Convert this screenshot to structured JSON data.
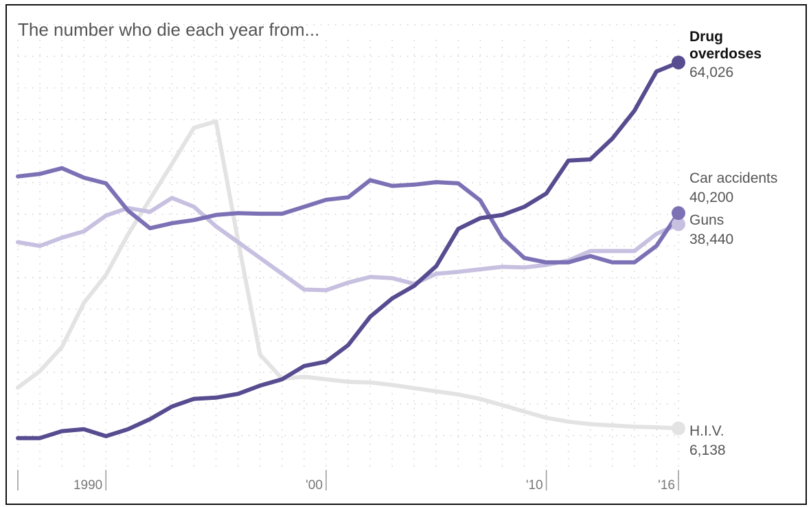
{
  "chart_data": {
    "type": "line",
    "title": "The number who die each year from...",
    "xlabel": "",
    "ylabel": "",
    "x": [
      1986,
      1987,
      1988,
      1989,
      1990,
      1991,
      1992,
      1993,
      1994,
      1995,
      1996,
      1997,
      1998,
      1999,
      2000,
      2001,
      2002,
      2003,
      2004,
      2005,
      2006,
      2007,
      2008,
      2009,
      2010,
      2011,
      2012,
      2013,
      2014,
      2015,
      2016
    ],
    "xlim": [
      1986,
      2016
    ],
    "ylim": [
      0,
      70000
    ],
    "x_ticks": [
      {
        "value": 1990,
        "label": "1990"
      },
      {
        "value": 2000,
        "label": "'00"
      },
      {
        "value": 2010,
        "label": "'10"
      },
      {
        "value": 2016,
        "label": "'16"
      }
    ],
    "grid": true,
    "series": [
      {
        "name": "H.I.V.",
        "display_value": "6,138",
        "color": "#e3e3e3",
        "values": [
          12600,
          15200,
          19000,
          26000,
          30400,
          36800,
          42400,
          48000,
          53700,
          54700,
          35800,
          17800,
          14000,
          14300,
          13900,
          13500,
          13400,
          13000,
          12500,
          12000,
          11500,
          10800,
          9800,
          8800,
          7800,
          7200,
          6800,
          6600,
          6400,
          6300,
          6138
        ]
      },
      {
        "name": "Guns",
        "display_value": "38,440",
        "color": "#c7c0e0",
        "values": [
          35600,
          35000,
          36300,
          37300,
          39800,
          41000,
          40400,
          42600,
          41200,
          38100,
          35600,
          33100,
          30600,
          28100,
          28000,
          29200,
          30100,
          29900,
          29000,
          30600,
          30900,
          31300,
          31700,
          31600,
          32000,
          32700,
          34200,
          34200,
          34200,
          36900,
          38440
        ]
      },
      {
        "name": "Car accidents",
        "display_value": "40,200",
        "color": "#7c71b5",
        "values": [
          46000,
          46400,
          47300,
          45800,
          44900,
          40600,
          37800,
          38600,
          39100,
          39900,
          40200,
          40100,
          40100,
          41200,
          42300,
          42700,
          45400,
          44500,
          44700,
          45100,
          44900,
          42200,
          36300,
          33100,
          32400,
          32400,
          33400,
          32400,
          32400,
          35000,
          40200
        ]
      },
      {
        "name": "Drug overdoses",
        "display_value": "64,026",
        "color": "#574c90",
        "values": [
          4600,
          4600,
          5700,
          6000,
          4900,
          6000,
          7600,
          9600,
          10800,
          11000,
          11600,
          12900,
          13900,
          16000,
          16700,
          19300,
          23800,
          26700,
          28700,
          31800,
          37700,
          39400,
          39900,
          41200,
          43300,
          48500,
          48700,
          52000,
          56400,
          62600,
          64026
        ]
      }
    ]
  },
  "labels": {
    "drug_line1": "Drug",
    "drug_line2": "overdoses",
    "drug_value": "64,026",
    "car_name": "Car accidents",
    "car_value": "40,200",
    "guns_name": "Guns",
    "guns_value": "38,440",
    "hiv_name": "H.I.V.",
    "hiv_value": "6,138"
  }
}
